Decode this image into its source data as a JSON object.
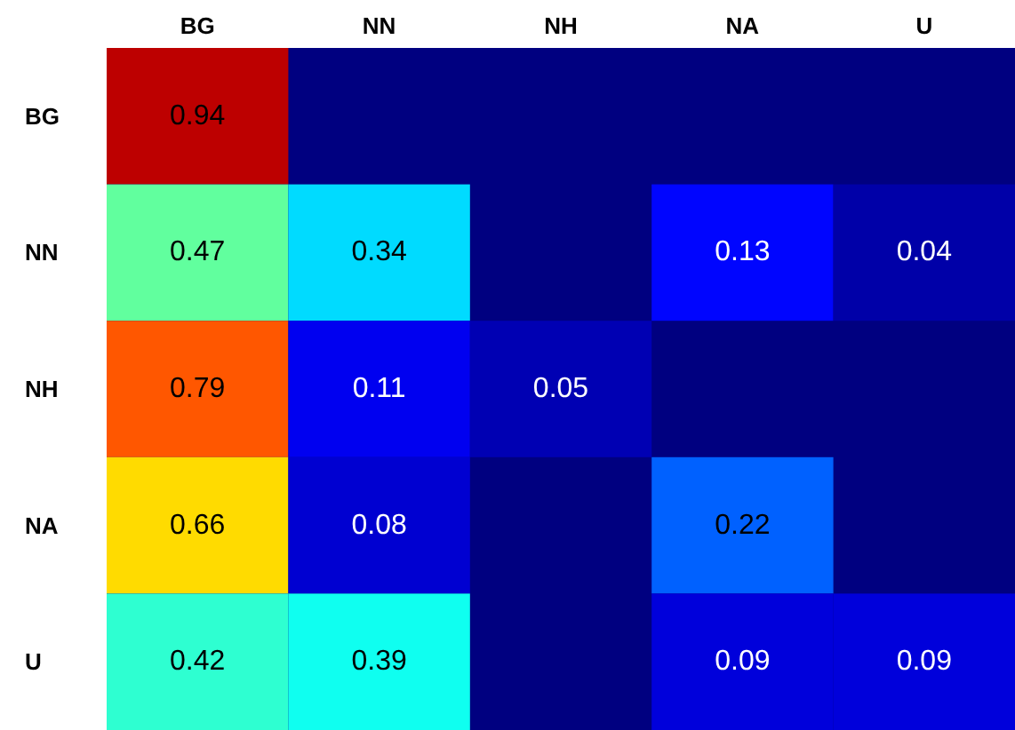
{
  "chart_data": {
    "type": "heatmap",
    "categories": [
      "BG",
      "NN",
      "NH",
      "NA",
      "U"
    ],
    "y_categories": [
      "BG",
      "NN",
      "NH",
      "NA",
      "U"
    ],
    "cells": [
      [
        0.94,
        null,
        null,
        null,
        null
      ],
      [
        0.47,
        0.34,
        null,
        0.13,
        0.04
      ],
      [
        0.79,
        0.11,
        0.05,
        null,
        null
      ],
      [
        0.66,
        0.08,
        null,
        0.22,
        null
      ],
      [
        0.42,
        0.39,
        null,
        0.09,
        0.09
      ]
    ],
    "data_labels": true
  }
}
